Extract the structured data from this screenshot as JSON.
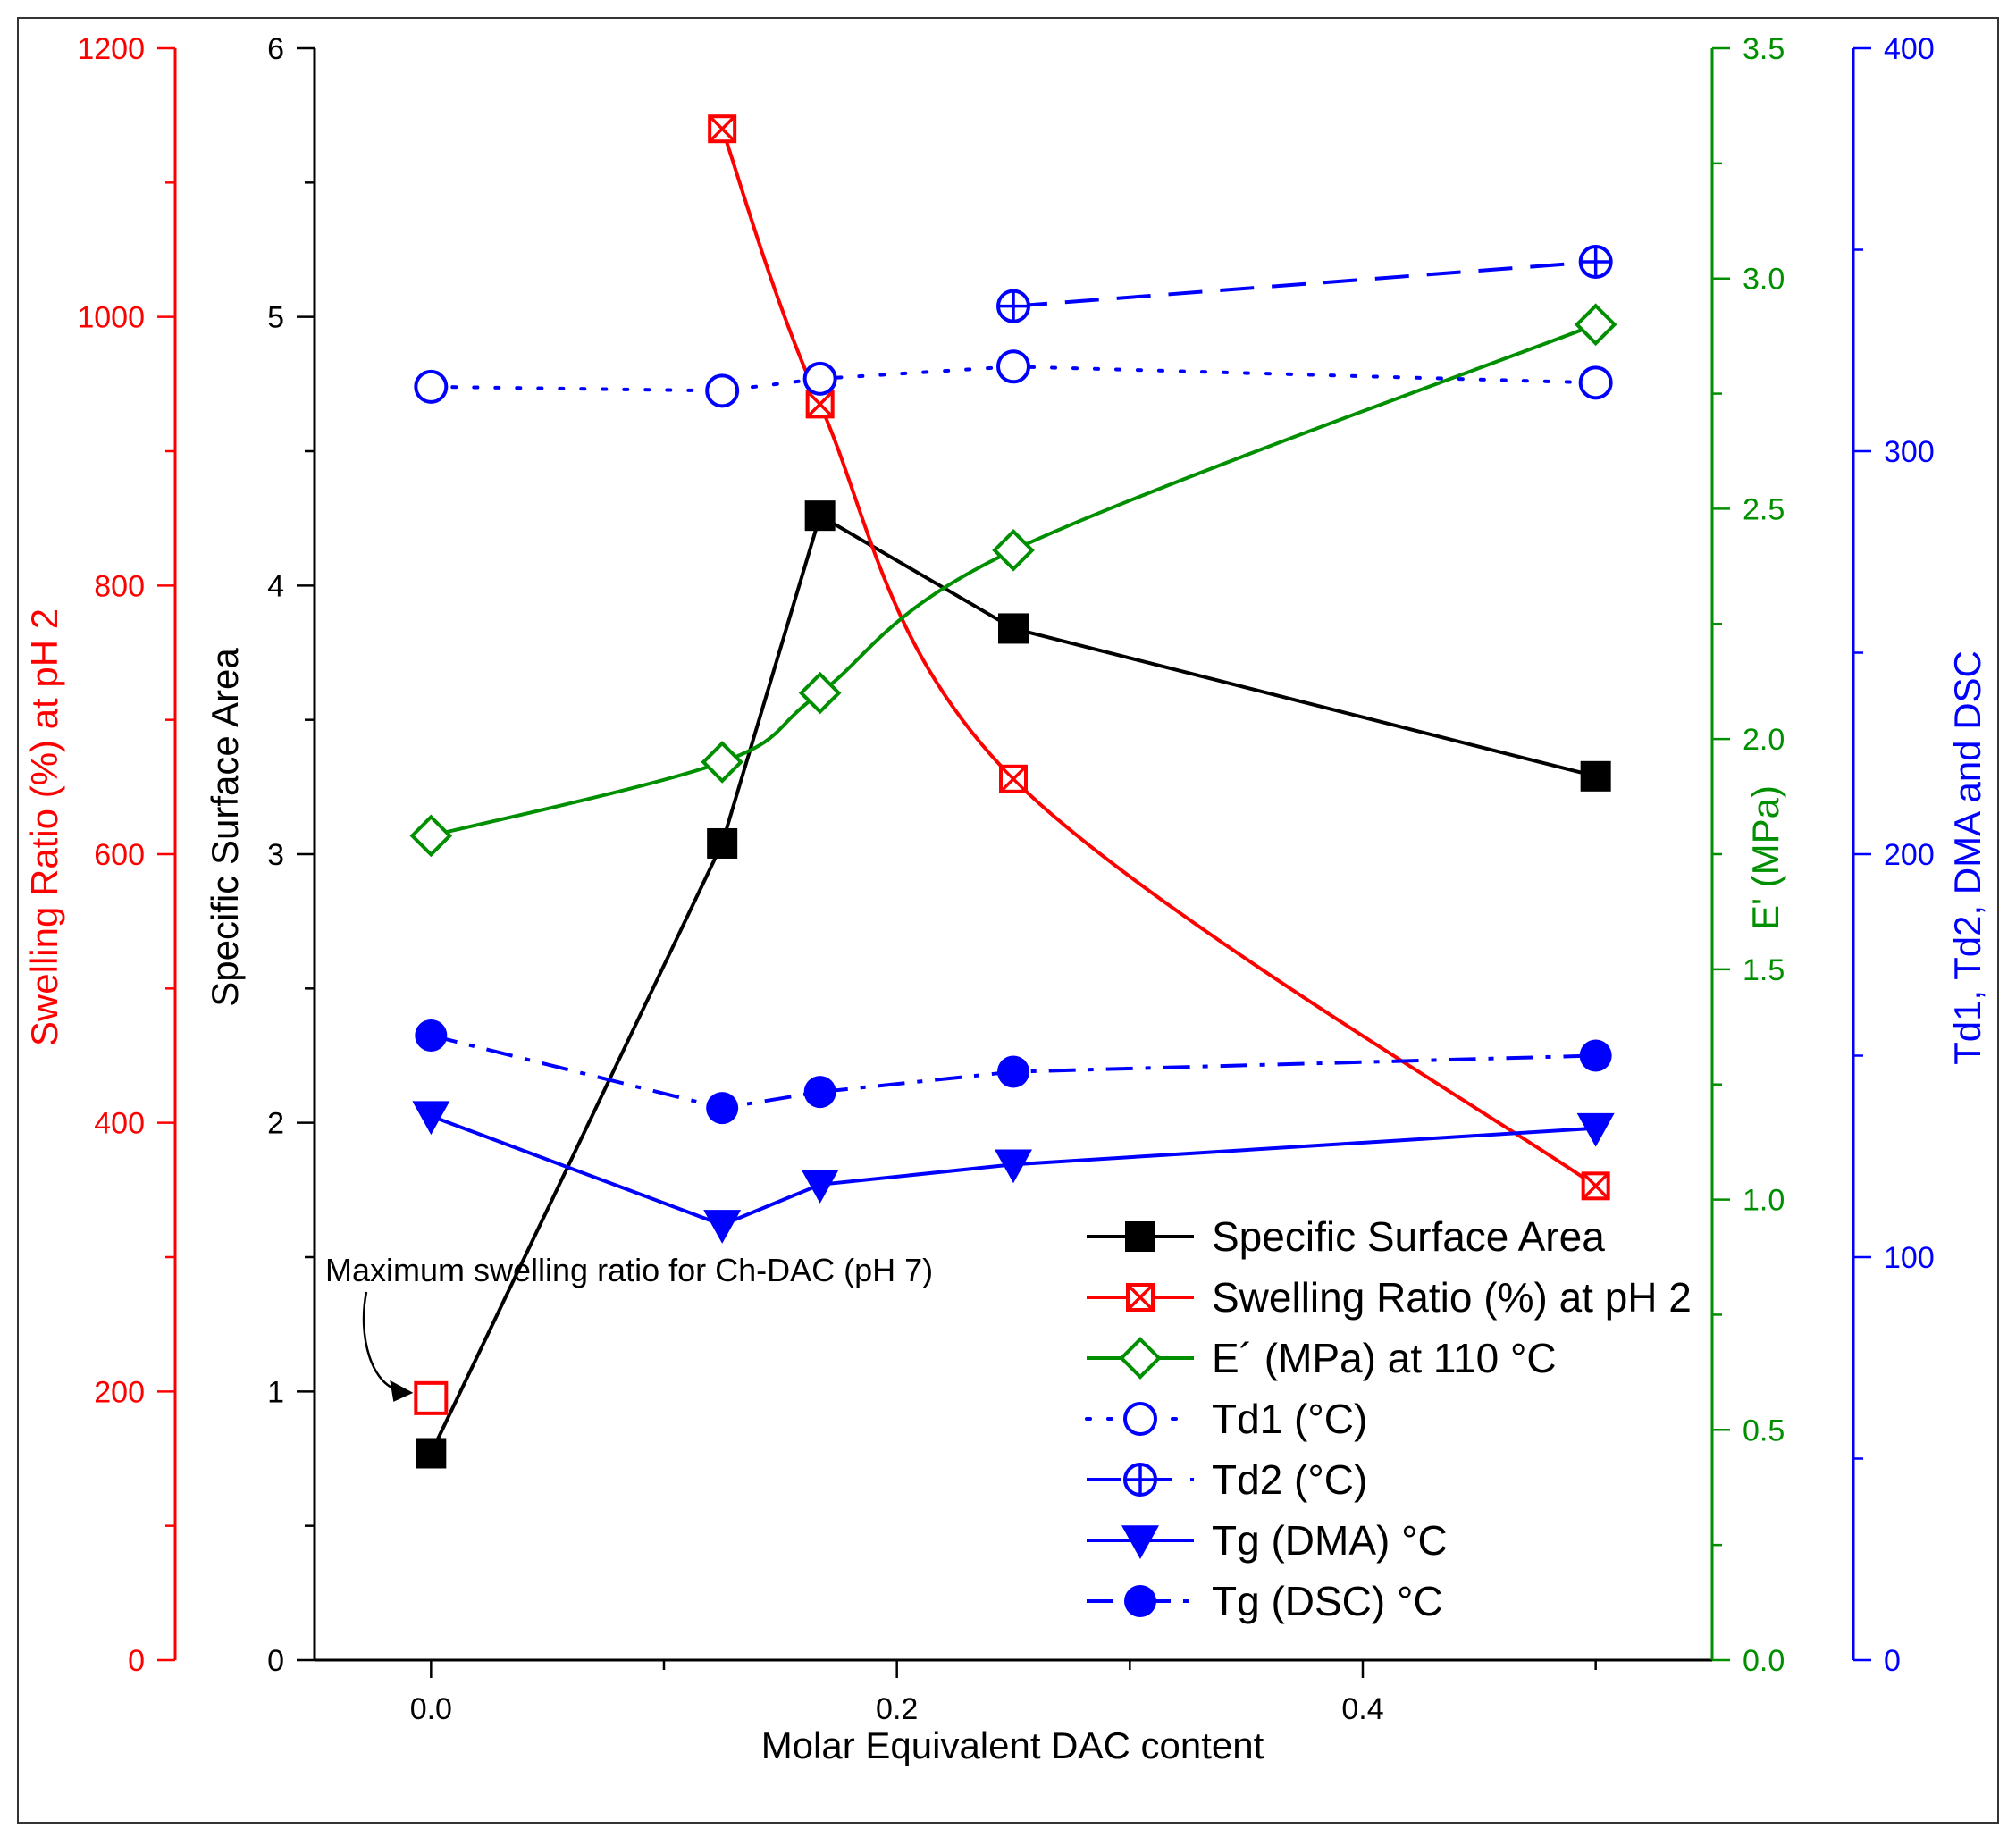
{
  "chart_data": {
    "type": "line",
    "x_axis": {
      "label": "Molar Equivalent DAC content",
      "range": [
        -0.05,
        0.55
      ],
      "major_ticks": [
        0.0,
        0.2,
        0.4
      ],
      "major_labels": [
        "0.0",
        "0.2",
        "0.4"
      ],
      "minor_ticks": [
        0.1,
        0.3,
        0.5
      ]
    },
    "y_axes": {
      "ssa": {
        "label": "Specific Surface Area",
        "range": [
          0,
          6
        ],
        "ticks": [
          0,
          1,
          2,
          3,
          4,
          5,
          6
        ],
        "tick_labels": [
          "0",
          "1",
          "2",
          "3",
          "4",
          "5",
          "6"
        ],
        "color": "#000000",
        "position": "left-inner"
      },
      "swelling": {
        "label": "Swelling Ratio (%) at pH 2",
        "range": [
          0,
          1200
        ],
        "ticks": [
          0,
          200,
          400,
          600,
          800,
          1000,
          1200
        ],
        "tick_labels": [
          "0",
          "200",
          "400",
          "600",
          "800",
          "1000",
          "1200"
        ],
        "color": "#ff0000",
        "position": "left-outer"
      },
      "modulus": {
        "label": "E' (MPa)",
        "range": [
          0,
          3.5
        ],
        "ticks": [
          0,
          0.5,
          1.0,
          1.5,
          2.0,
          2.5,
          3.0,
          3.5
        ],
        "tick_labels": [
          "0.0",
          "0.5",
          "1.0",
          "1.5",
          "2.0",
          "2.5",
          "3.0",
          "3.5"
        ],
        "color": "#008f00",
        "position": "right-inner"
      },
      "temperature": {
        "label": "Td1, Td2, DMA and DSC",
        "range": [
          0,
          400
        ],
        "ticks": [
          0,
          100,
          200,
          300,
          400
        ],
        "tick_labels": [
          "0",
          "100",
          "200",
          "300",
          "400"
        ],
        "color": "#0000ff",
        "position": "right-outer"
      }
    },
    "series": [
      {
        "name": "Specific Surface Area",
        "axis": "ssa",
        "color": "#000000",
        "line": "solid",
        "marker": "filled-square",
        "x": [
          0.0,
          0.125,
          0.167,
          0.25,
          0.5
        ],
        "y": [
          0.77,
          3.04,
          4.26,
          3.84,
          3.29
        ]
      },
      {
        "name": "Swelling Ratio (%) at pH 2",
        "axis": "swelling",
        "color": "#ff0000",
        "line": "smooth",
        "marker": "boxed-x",
        "x": [
          0.125,
          0.167,
          0.25,
          0.5
        ],
        "y": [
          1140,
          935,
          656,
          353
        ]
      },
      {
        "name": "E´ (MPa)  at 110 °C",
        "axis": "modulus",
        "color": "#008f00",
        "line": "smooth",
        "marker": "open-diamond",
        "x": [
          0.0,
          0.125,
          0.167,
          0.25,
          0.5
        ],
        "y": [
          1.79,
          1.95,
          2.1,
          2.41,
          2.9
        ]
      },
      {
        "name": "Td1 (°C)",
        "axis": "temperature",
        "color": "#0000ff",
        "line": "dotted",
        "marker": "open-circle",
        "x": [
          0.0,
          0.125,
          0.167,
          0.25,
          0.5
        ],
        "y": [
          316,
          315,
          318,
          321,
          317
        ]
      },
      {
        "name": "Td2 (°C)",
        "axis": "temperature",
        "color": "#0000ff",
        "line": "dashed",
        "marker": "circle-plus",
        "x": [
          0.25,
          0.5
        ],
        "y": [
          336,
          347
        ]
      },
      {
        "name": "Tg (DMA) °C",
        "axis": "temperature",
        "color": "#0000ff",
        "line": "solid",
        "marker": "filled-triangle-down",
        "x": [
          0.0,
          0.125,
          0.167,
          0.25,
          0.5
        ],
        "y": [
          135,
          108,
          118,
          123,
          132
        ]
      },
      {
        "name": "Tg (DSC) °C",
        "axis": "temperature",
        "color": "#0000ff",
        "line": "dash-dot",
        "marker": "filled-circle",
        "x": [
          0.0,
          0.125,
          0.167,
          0.25,
          0.5
        ],
        "y": [
          155,
          137,
          141,
          146,
          150
        ]
      }
    ],
    "extra_points": [
      {
        "axis": "swelling",
        "color": "#ff0000",
        "marker": "open-square",
        "x": 0.0,
        "y": 195
      }
    ],
    "annotation": {
      "text": "Maximum swelling ratio for Ch-DAC (pH 7)",
      "target_axis": "swelling",
      "target_x": 0.0,
      "target_y": 195
    },
    "legend": {
      "placement": "bottom-right",
      "entries": [
        "Specific Surface Area",
        "Swelling Ratio (%) at pH 2",
        "E´ (MPa)  at 110 °C",
        "Td1 (°C)",
        "Td2 (°C)",
        "Tg (DMA) °C",
        "Tg (DSC) °C"
      ]
    },
    "grid": false
  }
}
